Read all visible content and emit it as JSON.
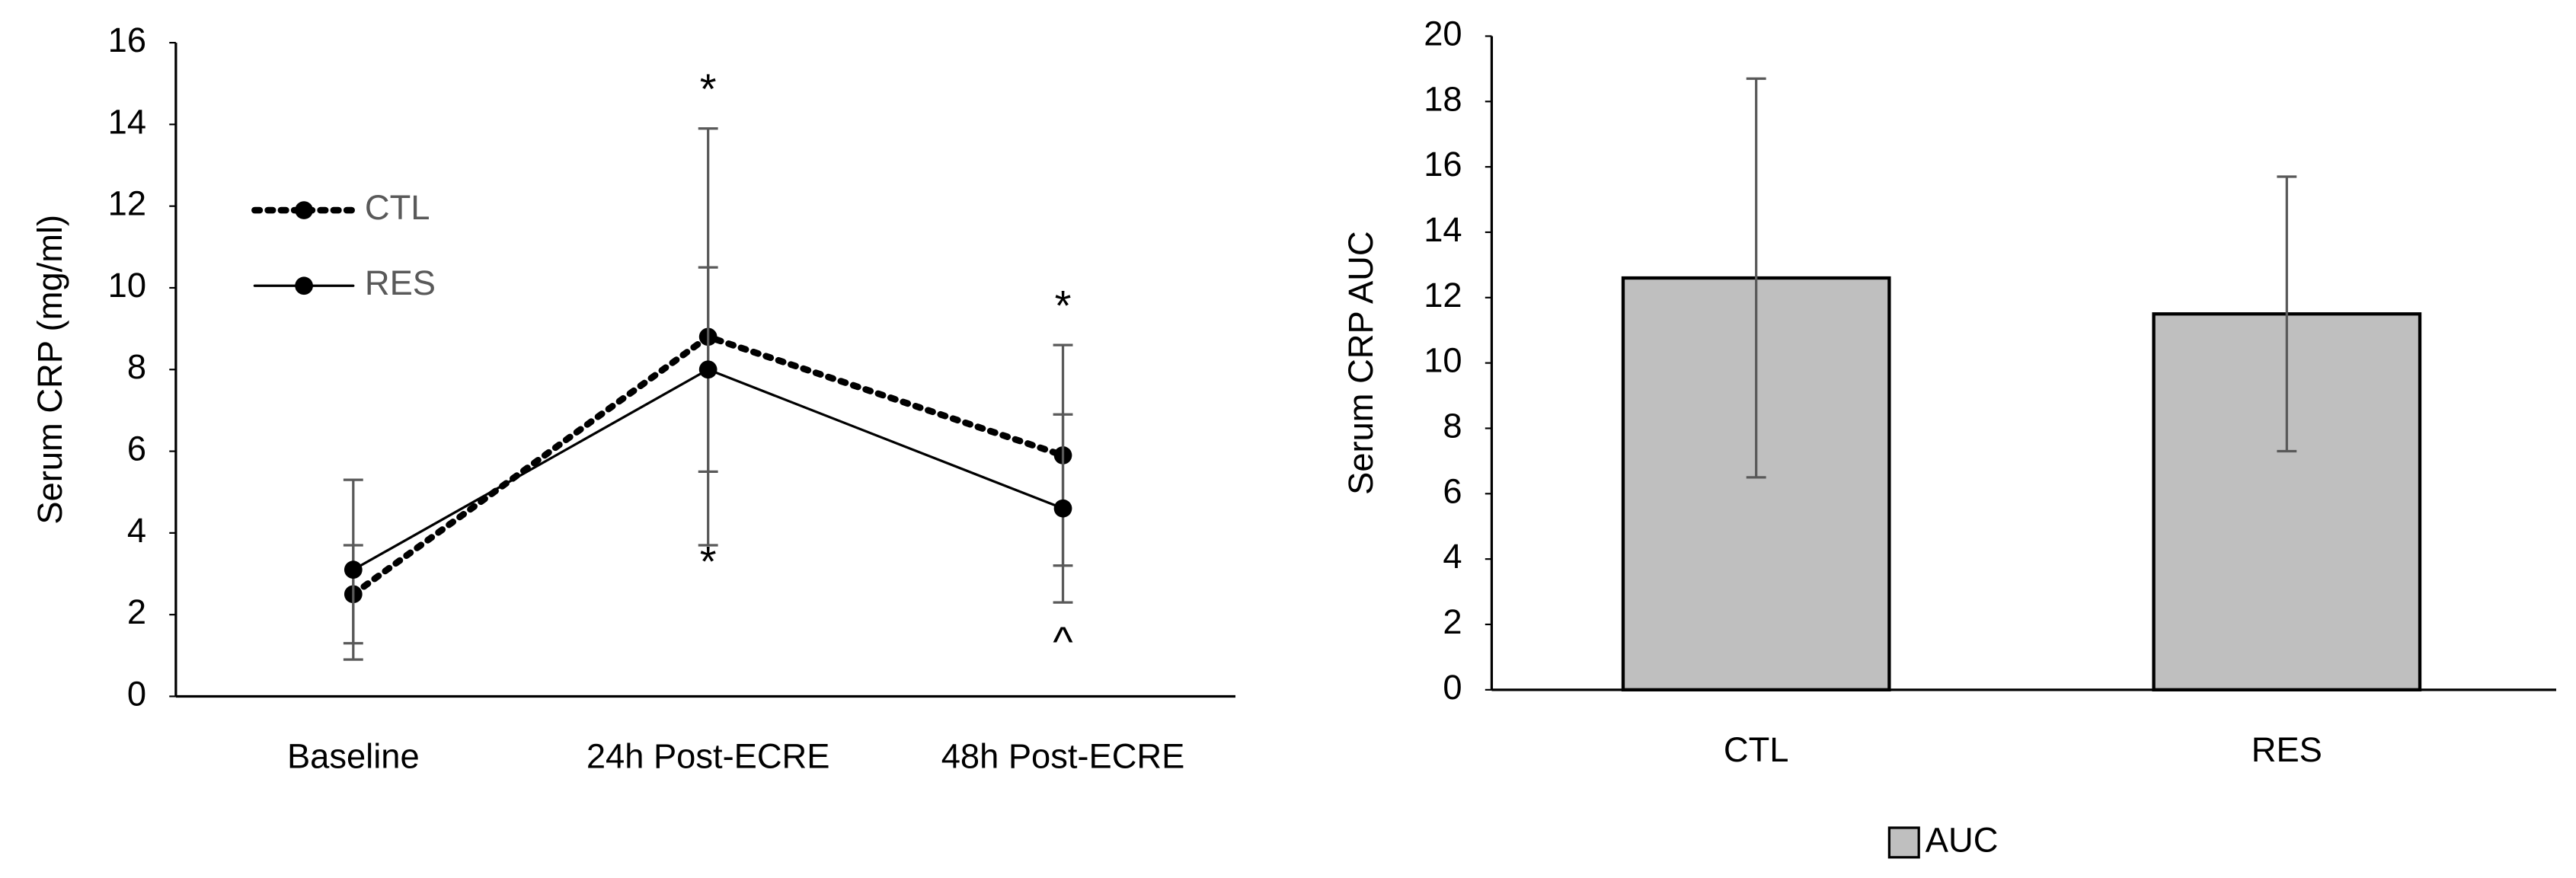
{
  "chart_data": [
    {
      "type": "line",
      "y_label": "Serum CRP (mg/ml)",
      "categories": [
        "Baseline",
        "24h Post-ECRE",
        "48h Post-ECRE"
      ],
      "series": [
        {
          "name": "CTL",
          "color": "#000000",
          "dash": "dotted",
          "values": [
            2.5,
            8.8,
            5.9
          ],
          "errors": [
            1.2,
            5.1,
            2.7
          ]
        },
        {
          "name": "RES",
          "color": "#000000",
          "dash": "solid",
          "values": [
            3.1,
            8.0,
            4.6
          ],
          "errors": [
            2.2,
            2.5,
            2.3
          ]
        }
      ],
      "annotations": [
        "*",
        "*",
        "*",
        "^"
      ],
      "ylim": [
        0,
        16
      ],
      "yticks": [
        0,
        2,
        4,
        6,
        8,
        10,
        12,
        14,
        16
      ],
      "legend": "top-left",
      "grid": false
    },
    {
      "type": "bar",
      "y_label": "Serum CRP AUC",
      "categories": [
        "CTL",
        "RES"
      ],
      "series": [
        {
          "name": "AUC",
          "color": "#bfbfbf",
          "values": [
            12.6,
            11.5
          ],
          "errors": [
            6.1,
            4.2
          ]
        }
      ],
      "ylim": [
        0,
        20
      ],
      "yticks": [
        0,
        2,
        4,
        6,
        8,
        10,
        12,
        14,
        16,
        18,
        20
      ],
      "legend": "bottom",
      "grid": false
    }
  ]
}
